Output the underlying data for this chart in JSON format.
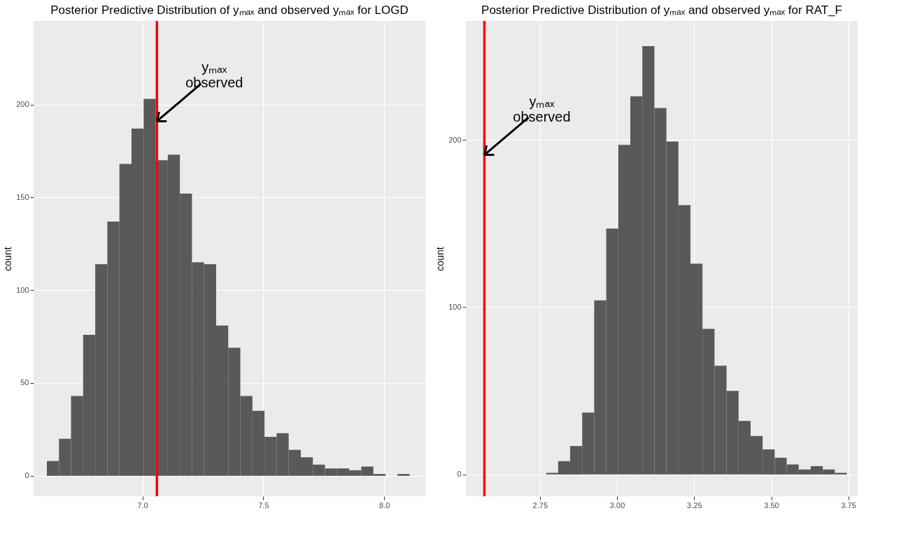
{
  "chart_data": [
    {
      "type": "histogram",
      "title": "Posterior Predictive Distribution of yₘₐₓ and observed yₘₐₓ for LOGD",
      "ylabel": "count",
      "color": "#595959",
      "bins": [
        6.605,
        6.655,
        6.705,
        6.755,
        6.805,
        6.855,
        6.905,
        6.955,
        7.005,
        7.055,
        7.105,
        7.155,
        7.205,
        7.255,
        7.305,
        7.355,
        7.405,
        7.455,
        7.505,
        7.555,
        7.605,
        7.655,
        7.705,
        7.755,
        7.805,
        7.855,
        7.905,
        7.955,
        8.005,
        8.055,
        8.105
      ],
      "values": [
        8,
        20,
        43,
        76,
        114,
        137,
        168,
        187,
        203,
        170,
        173,
        152,
        115,
        114,
        81,
        69,
        43,
        35,
        21,
        23,
        14,
        10,
        6,
        4,
        4,
        3,
        5,
        1,
        0,
        1
      ],
      "xlim": [
        6.55,
        8.17
      ],
      "ylim": [
        -11,
        245
      ],
      "xticks": [
        {
          "value": 7,
          "label": "7.0"
        },
        7.5,
        {
          "value": 8,
          "label": "8.0"
        }
      ],
      "yticks": [
        0,
        50,
        100,
        150,
        200
      ],
      "grid": true,
      "ref_lines": [
        {
          "axis": "x",
          "value": 7.06,
          "color": "#ff0000"
        }
      ],
      "annotations": [
        {
          "text": "yₘₐₓ\nobserved",
          "x": 7.06,
          "y": 191
        }
      ]
    },
    {
      "type": "histogram",
      "title": "Posterior Predictive Distribution of yₘₐₓ and observed yₘₐₓ for RAT_F",
      "ylabel": "count",
      "color": "#595959",
      "bins": [
        2.77,
        2.809,
        2.848,
        2.887,
        2.926,
        2.965,
        3.004,
        3.043,
        3.082,
        3.121,
        3.16,
        3.199,
        3.238,
        3.277,
        3.316,
        3.355,
        3.394,
        3.433,
        3.472,
        3.511,
        3.55,
        3.589,
        3.628,
        3.667,
        3.706,
        3.745
      ],
      "values": [
        1,
        8,
        17,
        37,
        104,
        147,
        197,
        226,
        256,
        219,
        199,
        161,
        126,
        87,
        65,
        50,
        32,
        23,
        15,
        10,
        6,
        3,
        5,
        3,
        1
      ],
      "xlim": [
        2.51,
        3.78
      ],
      "ylim": [
        -13,
        271
      ],
      "xticks": [
        {
          "value": 2.75,
          "label": "2.75"
        },
        {
          "value": 3,
          "label": "3.00"
        },
        {
          "value": 3.25,
          "label": "3.25"
        },
        {
          "value": 3.5,
          "label": "3.50"
        },
        {
          "value": 3.75,
          "label": "3.75"
        }
      ],
      "yticks": [
        0,
        100,
        200
      ],
      "grid": true,
      "ref_lines": [
        {
          "axis": "x",
          "value": 2.57,
          "color": "#ff0000"
        }
      ],
      "annotations": [
        {
          "text": "yₘₐₓ\nobserved",
          "x": 2.57,
          "y": 191
        }
      ]
    }
  ]
}
